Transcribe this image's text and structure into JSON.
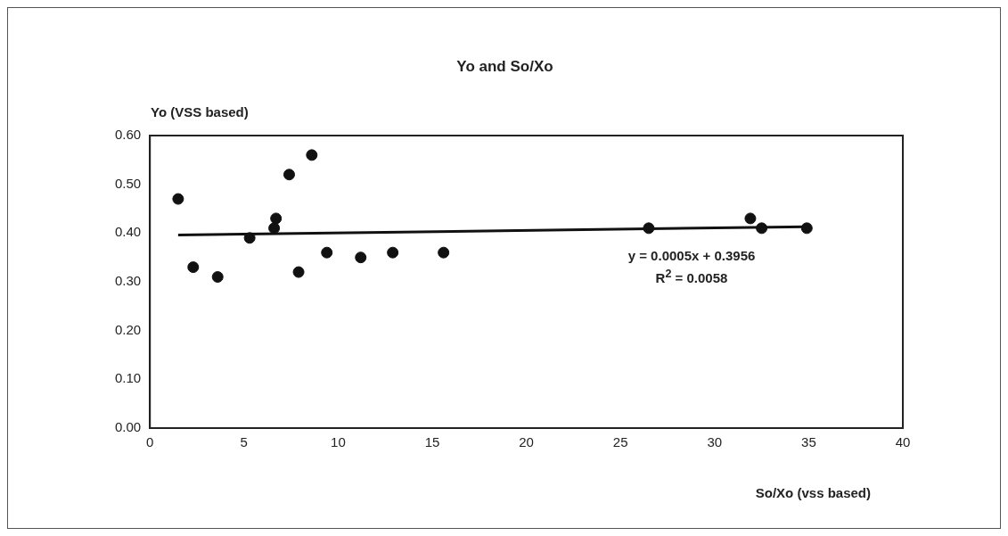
{
  "chart_data": {
    "type": "scatter",
    "title": "Yo and So/Xo",
    "ylabel": "Yo (VSS based)",
    "xlabel": "So/Xo (vss based)",
    "annotations": [
      "y = 0.0005x + 0.3956",
      "R$^{2}$ = 0.0058"
    ],
    "xlim": [
      0,
      40
    ],
    "xticks": [
      0,
      5,
      10,
      15,
      20,
      25,
      30,
      35,
      40
    ],
    "ylim": [
      0,
      0.6
    ],
    "yticks": [
      {
        "value": 0,
        "label": "0.00"
      },
      {
        "value": 0.1,
        "label": "0.10"
      },
      {
        "value": 0.2,
        "label": "0.20"
      },
      {
        "value": 0.3,
        "label": "0.30"
      },
      {
        "value": 0.4,
        "label": "0.40"
      },
      {
        "value": 0.5,
        "label": "0.50"
      },
      {
        "value": 0.6,
        "label": "0.60"
      }
    ],
    "grid": false,
    "legend": false,
    "series": [
      {
        "color": "#111111",
        "marker": "circle",
        "x": [
          1.5,
          2.3,
          3.6,
          5.3,
          6.7,
          6.6,
          7.4,
          8.6,
          7.9,
          9.4,
          11.2,
          12.9,
          15.6,
          26.5,
          31.9,
          32.5,
          34.9
        ],
        "values": [
          0.47,
          0.33,
          0.31,
          0.39,
          0.43,
          0.41,
          0.52,
          0.56,
          0.32,
          0.36,
          0.35,
          0.36,
          0.36,
          0.41,
          0.43,
          0.41,
          0.41
        ]
      },
      {
        "type": "line",
        "color": "#111111",
        "marker": "none",
        "line_style": "solid",
        "x": [
          1.5,
          34.9
        ],
        "values": [
          0.396,
          0.413
        ]
      }
    ]
  }
}
